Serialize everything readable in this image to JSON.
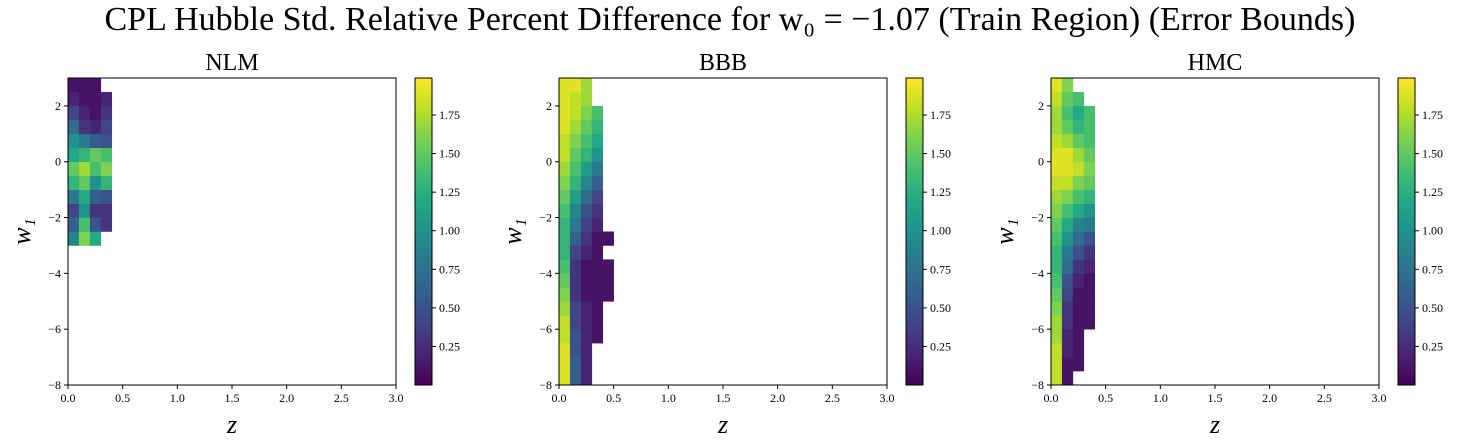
{
  "suptitle": "CPL Hubble Std. Relative Percent Difference for w₀ = −1.07 (Train Region) (Error Bounds)",
  "chart_data": [
    {
      "type": "heatmap",
      "title": "NLM",
      "xlabel": "z",
      "ylabel": "w₁",
      "colormap": "viridis",
      "xlim": [
        0,
        3
      ],
      "ylim": [
        -8,
        3
      ],
      "xticks": [
        {
          "value": 0,
          "label": "0.0"
        },
        0.5,
        {
          "value": 1,
          "label": "1.0"
        },
        1.5,
        {
          "value": 2,
          "label": "2.0"
        },
        2.5,
        {
          "value": 3,
          "label": "3.0"
        }
      ],
      "yticks": [
        {
          "value": -8,
          "label": "−8"
        },
        {
          "value": -6,
          "label": "−6"
        },
        {
          "value": -4,
          "label": "−4"
        },
        {
          "value": -2,
          "label": "−2"
        },
        0,
        2
      ],
      "x_edges": [
        0,
        0.1,
        0.2,
        0.3,
        0.4,
        0.5
      ],
      "y_edges": [
        -8,
        -7.5,
        -7,
        -6.5,
        -6,
        -5.5,
        -5,
        -4.5,
        -4,
        -3.5,
        -3,
        -2.5,
        -2,
        -1.5,
        -1,
        -0.5,
        0,
        0.5,
        1,
        1.5,
        2,
        2.5,
        3
      ],
      "values": [
        [
          null,
          null,
          null,
          null,
          null
        ],
        [
          null,
          null,
          null,
          null,
          null
        ],
        [
          null,
          null,
          null,
          null,
          null
        ],
        [
          null,
          null,
          null,
          null,
          null
        ],
        [
          null,
          null,
          null,
          null,
          null
        ],
        [
          null,
          null,
          null,
          null,
          null
        ],
        [
          null,
          null,
          null,
          null,
          null
        ],
        [
          null,
          null,
          null,
          null,
          null
        ],
        [
          null,
          null,
          null,
          null,
          null
        ],
        [
          null,
          null,
          null,
          null,
          null
        ],
        [
          0.9,
          1.6,
          1.2,
          null,
          null
        ],
        [
          0.6,
          1.4,
          0.5,
          0.3,
          null
        ],
        [
          0.4,
          1.0,
          0.3,
          0.3,
          null
        ],
        [
          0.8,
          1.2,
          0.6,
          0.5,
          null
        ],
        [
          1.3,
          1.5,
          1.0,
          1.3,
          null
        ],
        [
          1.5,
          1.7,
          1.4,
          1.6,
          null
        ],
        [
          1.2,
          1.3,
          1.5,
          1.4,
          null
        ],
        [
          1.0,
          0.8,
          0.6,
          0.5,
          null
        ],
        [
          0.7,
          0.3,
          0.2,
          0.4,
          null
        ],
        [
          0.4,
          0.2,
          0.1,
          0.3,
          null
        ],
        [
          0.2,
          0.1,
          0.1,
          0.2,
          null
        ],
        [
          0.1,
          0.1,
          0.1,
          null,
          null
        ]
      ],
      "clim": [
        0,
        1.99
      ],
      "cticks": [
        0.25,
        {
          "value": 0.5,
          "label": "0.50"
        },
        0.75,
        {
          "value": 1,
          "label": "1.00"
        },
        1.25,
        {
          "value": 1.5,
          "label": "1.50"
        },
        1.75
      ]
    },
    {
      "type": "heatmap",
      "title": "BBB",
      "xlabel": "z",
      "ylabel": "w₁",
      "colormap": "viridis",
      "xlim": [
        0,
        3
      ],
      "ylim": [
        -8,
        3
      ],
      "xticks": [
        {
          "value": 0,
          "label": "0.0"
        },
        0.5,
        {
          "value": 1,
          "label": "1.0"
        },
        1.5,
        {
          "value": 2,
          "label": "2.0"
        },
        2.5,
        {
          "value": 3,
          "label": "3.0"
        }
      ],
      "yticks": [
        {
          "value": -8,
          "label": "−8"
        },
        {
          "value": -6,
          "label": "−6"
        },
        {
          "value": -4,
          "label": "−4"
        },
        {
          "value": -2,
          "label": "−2"
        },
        0,
        2
      ],
      "x_edges": [
        0,
        0.1,
        0.2,
        0.3,
        0.4,
        0.5
      ],
      "y_edges": [
        -8,
        -7.5,
        -7,
        -6.5,
        -6,
        -5.5,
        -5,
        -4.5,
        -4,
        -3.5,
        -3,
        -2.5,
        -2,
        -1.5,
        -1,
        -0.5,
        0,
        0.5,
        1,
        1.5,
        2,
        2.5,
        3
      ],
      "values": [
        [
          1.9,
          0.6,
          0.2,
          null,
          null
        ],
        [
          1.9,
          0.6,
          0.2,
          null,
          null
        ],
        [
          1.9,
          0.5,
          0.2,
          null,
          null
        ],
        [
          1.8,
          0.5,
          0.2,
          0.1,
          null
        ],
        [
          1.8,
          0.4,
          0.2,
          0.1,
          null
        ],
        [
          1.7,
          0.4,
          0.2,
          0.1,
          null
        ],
        [
          1.6,
          0.3,
          0.1,
          0.1,
          0.1
        ],
        [
          1.5,
          0.3,
          0.1,
          0.1,
          0.1
        ],
        [
          1.4,
          0.3,
          0.1,
          0.1,
          0.1
        ],
        [
          1.3,
          0.4,
          0.2,
          0.1,
          null
        ],
        [
          1.3,
          0.6,
          0.3,
          0.1,
          0.1
        ],
        [
          1.3,
          0.8,
          0.4,
          0.2,
          null
        ],
        [
          1.4,
          0.9,
          0.5,
          0.3,
          null
        ],
        [
          1.5,
          1.1,
          0.7,
          0.4,
          null
        ],
        [
          1.6,
          1.3,
          0.9,
          0.6,
          null
        ],
        [
          1.7,
          1.4,
          1.1,
          0.8,
          null
        ],
        [
          1.8,
          1.5,
          1.3,
          1.0,
          null
        ],
        [
          1.8,
          1.6,
          1.4,
          1.2,
          null
        ],
        [
          1.9,
          1.7,
          1.5,
          1.3,
          null
        ],
        [
          1.9,
          1.8,
          1.6,
          1.4,
          null
        ],
        [
          1.9,
          1.8,
          1.7,
          null,
          null
        ],
        [
          1.9,
          1.9,
          1.7,
          null,
          null
        ]
      ],
      "clim": [
        0,
        1.99
      ],
      "cticks": [
        0.25,
        {
          "value": 0.5,
          "label": "0.50"
        },
        0.75,
        {
          "value": 1,
          "label": "1.00"
        },
        1.25,
        {
          "value": 1.5,
          "label": "1.50"
        },
        1.75
      ]
    },
    {
      "type": "heatmap",
      "title": "HMC",
      "xlabel": "z",
      "ylabel": "w₁",
      "colormap": "viridis",
      "xlim": [
        0,
        3
      ],
      "ylim": [
        -8,
        3
      ],
      "xticks": [
        {
          "value": 0,
          "label": "0.0"
        },
        0.5,
        {
          "value": 1,
          "label": "1.0"
        },
        1.5,
        {
          "value": 2,
          "label": "2.0"
        },
        2.5,
        {
          "value": 3,
          "label": "3.0"
        }
      ],
      "yticks": [
        {
          "value": -8,
          "label": "−8"
        },
        {
          "value": -6,
          "label": "−6"
        },
        {
          "value": -4,
          "label": "−4"
        },
        {
          "value": -2,
          "label": "−2"
        },
        0,
        2
      ],
      "x_edges": [
        0,
        0.1,
        0.2,
        0.3,
        0.4,
        0.5
      ],
      "y_edges": [
        -8,
        -7.5,
        -7,
        -6.5,
        -6,
        -5.5,
        -5,
        -4.5,
        -4,
        -3.5,
        -3,
        -2.5,
        -2,
        -1.5,
        -1,
        -0.5,
        0,
        0.5,
        1,
        1.5,
        2,
        2.5,
        3
      ],
      "values": [
        [
          1.8,
          0.1,
          null,
          null,
          null
        ],
        [
          1.8,
          0.1,
          0.1,
          null,
          null
        ],
        [
          1.8,
          0.2,
          0.1,
          null,
          null
        ],
        [
          1.7,
          0.2,
          0.1,
          null,
          null
        ],
        [
          1.7,
          0.3,
          0.1,
          0.1,
          null
        ],
        [
          1.6,
          0.3,
          0.1,
          0.1,
          null
        ],
        [
          1.5,
          0.4,
          0.1,
          0.1,
          null
        ],
        [
          1.4,
          0.5,
          0.2,
          0.1,
          null
        ],
        [
          1.3,
          0.7,
          0.3,
          0.2,
          null
        ],
        [
          1.3,
          0.8,
          0.5,
          0.3,
          null
        ],
        [
          1.4,
          1.0,
          0.7,
          0.5,
          null
        ],
        [
          1.5,
          1.2,
          0.9,
          0.8,
          null
        ],
        [
          1.6,
          1.4,
          1.2,
          1.0,
          null
        ],
        [
          1.7,
          1.6,
          1.4,
          1.3,
          null
        ],
        [
          1.8,
          1.8,
          1.6,
          1.5,
          null
        ],
        [
          1.9,
          1.9,
          1.8,
          1.6,
          null
        ],
        [
          1.9,
          1.9,
          1.7,
          1.5,
          null
        ],
        [
          1.8,
          1.7,
          1.5,
          1.4,
          null
        ],
        [
          1.7,
          1.5,
          1.3,
          1.4,
          null
        ],
        [
          1.7,
          1.4,
          1.2,
          1.4,
          null
        ],
        [
          1.8,
          1.5,
          1.4,
          null,
          null
        ],
        [
          1.9,
          1.6,
          null,
          null,
          null
        ]
      ],
      "clim": [
        0,
        1.99
      ],
      "cticks": [
        0.25,
        {
          "value": 0.5,
          "label": "0.50"
        },
        0.75,
        {
          "value": 1,
          "label": "1.00"
        },
        1.25,
        {
          "value": 1.5,
          "label": "1.50"
        },
        1.75
      ]
    }
  ]
}
